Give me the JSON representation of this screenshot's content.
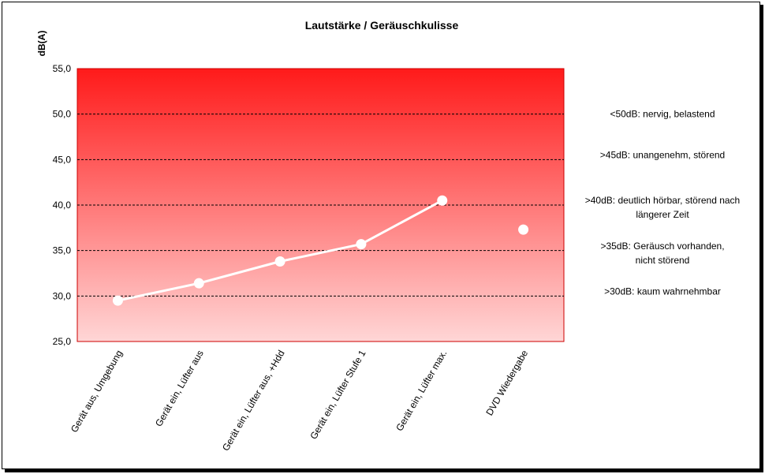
{
  "chart_data": {
    "type": "line",
    "title": "Lautstärke / Geräuschkulisse",
    "ylabel": "dB(A)",
    "xlabel": "",
    "ylim": [
      25,
      55
    ],
    "yticks": [
      "25,0",
      "30,0",
      "35,0",
      "40,0",
      "45,0",
      "50,0",
      "55,0"
    ],
    "categories": [
      "Gerät aus, Umgebung",
      "Gerät ein, Lüfter aus",
      "Gerät ein, Lüfter aus, +Hdd",
      "Gerät ein, Lüfter Stufe 1",
      "Gerät ein, Lüfter max.",
      "DVD Wiedergabe"
    ],
    "series": [
      {
        "values": [
          29.5,
          31.4,
          33.8,
          35.7,
          40.5,
          37.3
        ]
      }
    ],
    "connected_points": 5,
    "grid": "dashed horizontal",
    "legend": "none",
    "annotations": [
      {
        "y": 50,
        "lines": [
          "<50dB: nervig, belastend"
        ]
      },
      {
        "y": 45.5,
        "lines": [
          ">45dB: unangenehm, störend"
        ]
      },
      {
        "y": 40.5,
        "lines": [
          ">40dB: deutlich hörbar, störend nach",
          "längerer Zeit"
        ]
      },
      {
        "y": 35.5,
        "lines": [
          ">35dB: Geräusch vorhanden,",
          "nicht störend"
        ]
      },
      {
        "y": 30.5,
        "lines": [
          ">30dB: kaum wahrnehmbar"
        ]
      }
    ],
    "colors": {
      "plot_top": "#ff1a1a",
      "plot_bottom": "#ffd6d6",
      "plot_border": "#cc0000",
      "line": "#ffffff",
      "marker": "#ffffff"
    }
  }
}
